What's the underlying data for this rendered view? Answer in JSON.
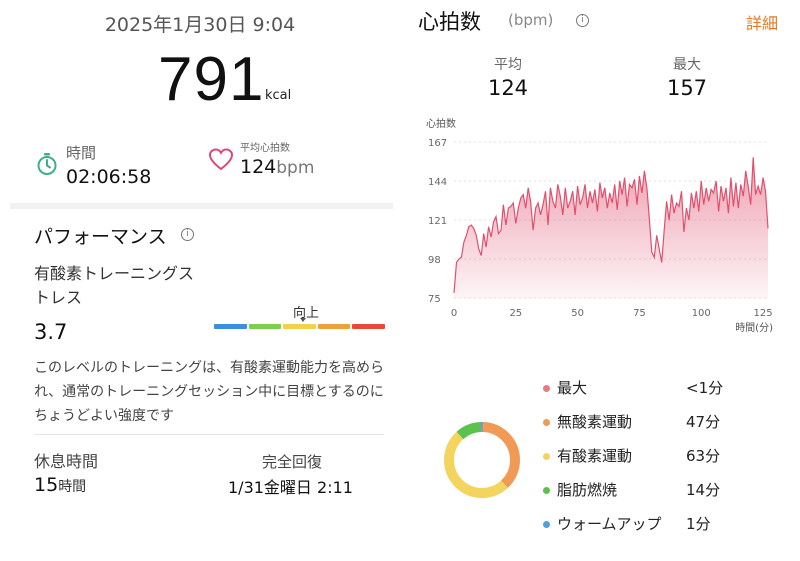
{
  "workout": {
    "datetime": "2025年1月30日 9:04",
    "calories": "791",
    "calories_unit": "kcal",
    "duration_label": "時間",
    "duration_value": "02:06:58",
    "avg_hr_label": "平均心拍数",
    "avg_hr_value": "124",
    "avg_hr_unit": "bpm"
  },
  "performance": {
    "title": "パフォーマンス",
    "info_glyph": "i",
    "metric_name": "有酸素トレーニングストレス",
    "metric_value": "3.7",
    "scale_label": "向上",
    "scale_level": 0.52,
    "scale_colors": [
      "#3b8fe0",
      "#7dcf4f",
      "#f0d34a",
      "#f0a03a",
      "#e84a3a"
    ],
    "description": "このレベルのトレーニングは、有酸素運動能力を高められ、通常のトレーニングセッション中に目標とするのにちょうどよい強度です"
  },
  "recovery": {
    "rest_label": "休息時間",
    "rest_value": "15",
    "rest_unit": "時間",
    "full_label": "完全回復",
    "full_value": "1/31金曜日 2:11"
  },
  "heart_rate": {
    "title": "心拍数",
    "unit": "(bpm)",
    "info_glyph": "i",
    "detail_link": "詳細",
    "avg_label": "平均",
    "avg_value": "124",
    "max_label": "最大",
    "max_value": "157"
  },
  "chart_data": {
    "type": "area",
    "ylabel": "心拍数",
    "xlabel": "時間(分)",
    "ylim": [
      75,
      167
    ],
    "xlim": [
      0,
      127
    ],
    "yticks": [
      75,
      98,
      121,
      144,
      167
    ],
    "xticks": [
      0,
      25,
      50,
      75,
      100,
      125
    ],
    "color": "#e0506e",
    "x": [
      0,
      1,
      2,
      3,
      4,
      5,
      6,
      7,
      8,
      9,
      10,
      11,
      12,
      13,
      14,
      15,
      16,
      17,
      18,
      19,
      20,
      21,
      22,
      23,
      24,
      25,
      26,
      27,
      28,
      29,
      30,
      31,
      32,
      33,
      34,
      35,
      36,
      37,
      38,
      39,
      40,
      41,
      42,
      43,
      44,
      45,
      46,
      47,
      48,
      49,
      50,
      51,
      52,
      53,
      54,
      55,
      56,
      57,
      58,
      59,
      60,
      61,
      62,
      63,
      64,
      65,
      66,
      67,
      68,
      69,
      70,
      71,
      72,
      73,
      74,
      75,
      76,
      77,
      78,
      79,
      80,
      81,
      82,
      83,
      84,
      85,
      86,
      87,
      88,
      89,
      90,
      91,
      92,
      93,
      94,
      95,
      96,
      97,
      98,
      99,
      100,
      101,
      102,
      103,
      104,
      105,
      106,
      107,
      108,
      109,
      110,
      111,
      112,
      113,
      114,
      115,
      116,
      117,
      118,
      119,
      120,
      121,
      122,
      123,
      124,
      125,
      126,
      127
    ],
    "y": [
      78,
      96,
      98,
      99,
      108,
      112,
      117,
      118,
      116,
      112,
      104,
      100,
      113,
      105,
      117,
      111,
      120,
      123,
      113,
      115,
      130,
      118,
      128,
      129,
      131,
      119,
      128,
      134,
      136,
      128,
      140,
      132,
      115,
      128,
      131,
      124,
      130,
      138,
      118,
      140,
      132,
      128,
      142,
      135,
      124,
      140,
      128,
      132,
      138,
      124,
      141,
      130,
      134,
      142,
      128,
      138,
      131,
      139,
      126,
      143,
      134,
      140,
      128,
      137,
      131,
      142,
      127,
      144,
      136,
      146,
      129,
      142,
      140,
      145,
      130,
      147,
      137,
      150,
      140,
      122,
      102,
      99,
      112,
      104,
      96,
      115,
      132,
      121,
      136,
      125,
      131,
      129,
      138,
      114,
      128,
      121,
      137,
      128,
      138,
      126,
      144,
      130,
      140,
      132,
      139,
      137,
      144,
      126,
      141,
      132,
      140,
      125,
      146,
      129,
      143,
      128,
      142,
      135,
      150,
      141,
      130,
      158,
      136,
      141,
      136,
      146,
      138,
      116
    ]
  },
  "zones": [
    {
      "name": "最大",
      "value": "<1分",
      "minutes": 0.5,
      "color": "#e87a80"
    },
    {
      "name": "無酸素運動",
      "value": "47分",
      "minutes": 47,
      "color": "#f09a55"
    },
    {
      "name": "有酸素運動",
      "value": "63分",
      "minutes": 63,
      "color": "#f3d45e"
    },
    {
      "name": "脂肪燃焼",
      "value": "14分",
      "minutes": 14,
      "color": "#5cc24d"
    },
    {
      "name": "ウォームアップ",
      "value": "1分",
      "minutes": 1,
      "color": "#4f9fe3"
    }
  ]
}
